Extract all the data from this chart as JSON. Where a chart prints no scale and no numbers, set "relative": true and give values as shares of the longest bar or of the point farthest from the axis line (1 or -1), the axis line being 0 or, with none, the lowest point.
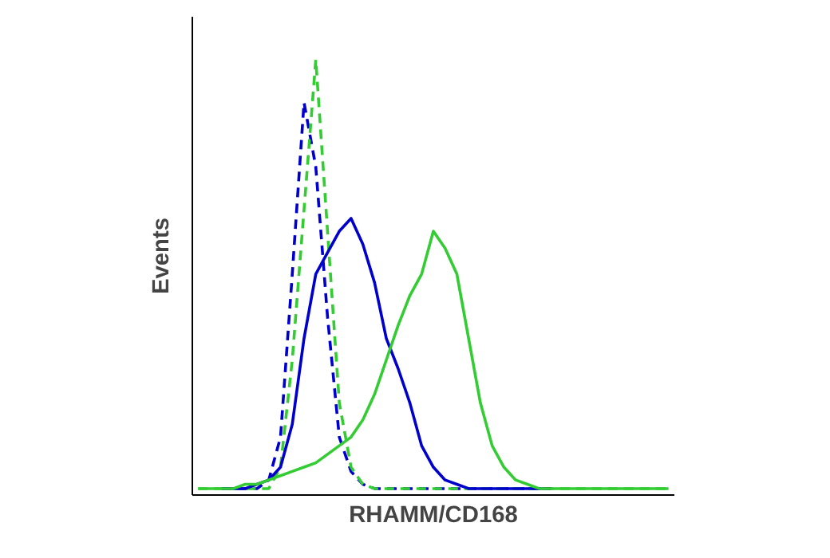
{
  "chart_data": {
    "type": "line",
    "relative": true,
    "xlabel": "RHAMM/CD168",
    "ylabel": "Events",
    "categories": [
      null,
      null,
      null,
      null,
      null,
      null,
      null,
      null,
      null,
      null,
      null,
      null,
      null,
      null,
      null,
      null,
      null,
      null,
      null,
      null,
      null,
      null,
      null,
      null,
      null,
      null,
      null,
      null,
      null,
      null,
      null,
      null,
      null,
      null,
      null,
      null,
      null,
      null,
      null,
      null,
      null
    ],
    "series": [
      {
        "color": "#0000cc",
        "line_style": "dashed",
        "values": [
          null,
          null,
          0,
          0,
          0,
          0,
          0.02,
          0.12,
          0.5,
          0.9,
          0.75,
          0.4,
          0.12,
          0.04,
          0.01,
          0,
          0,
          0,
          0,
          0,
          0,
          0,
          0,
          0,
          0,
          0,
          0,
          0,
          0,
          0,
          0,
          null,
          null,
          null,
          null,
          null,
          null,
          null,
          null,
          null,
          null
        ]
      },
      {
        "color": "#33cc33",
        "line_style": "dashed",
        "values": [
          0,
          0,
          0,
          0,
          0,
          0,
          0,
          0.05,
          0.3,
          0.65,
          1,
          0.6,
          0.2,
          0.05,
          0.01,
          0,
          0,
          0,
          0,
          0,
          0,
          0,
          0,
          0,
          0,
          0,
          0,
          0,
          0,
          0,
          0,
          0,
          0,
          0,
          0,
          0,
          0,
          0,
          0,
          0,
          0
        ]
      },
      {
        "color": "#0000cc",
        "line_style": "solid",
        "values": [
          null,
          null,
          0,
          0,
          0,
          0.01,
          0.02,
          0.05,
          0.15,
          0.35,
          0.5,
          0.55,
          0.6,
          0.63,
          0.57,
          0.48,
          0.35,
          0.28,
          0.2,
          0.1,
          0.05,
          0.02,
          0.01,
          0,
          0,
          0,
          0,
          0,
          0,
          0,
          0,
          null,
          null,
          null,
          null,
          null,
          null,
          null,
          null,
          null,
          null
        ]
      },
      {
        "color": "#33cc33",
        "line_style": "solid",
        "values": [
          0,
          0,
          0,
          0,
          0.01,
          0.01,
          0.02,
          0.03,
          0.04,
          0.05,
          0.06,
          0.08,
          0.1,
          0.12,
          0.16,
          0.22,
          0.3,
          0.38,
          0.45,
          0.5,
          0.6,
          0.56,
          0.5,
          0.35,
          0.2,
          0.1,
          0.05,
          0.02,
          0.01,
          0,
          0,
          0,
          0,
          0,
          0,
          0,
          0,
          0,
          0,
          0,
          0
        ]
      }
    ]
  }
}
